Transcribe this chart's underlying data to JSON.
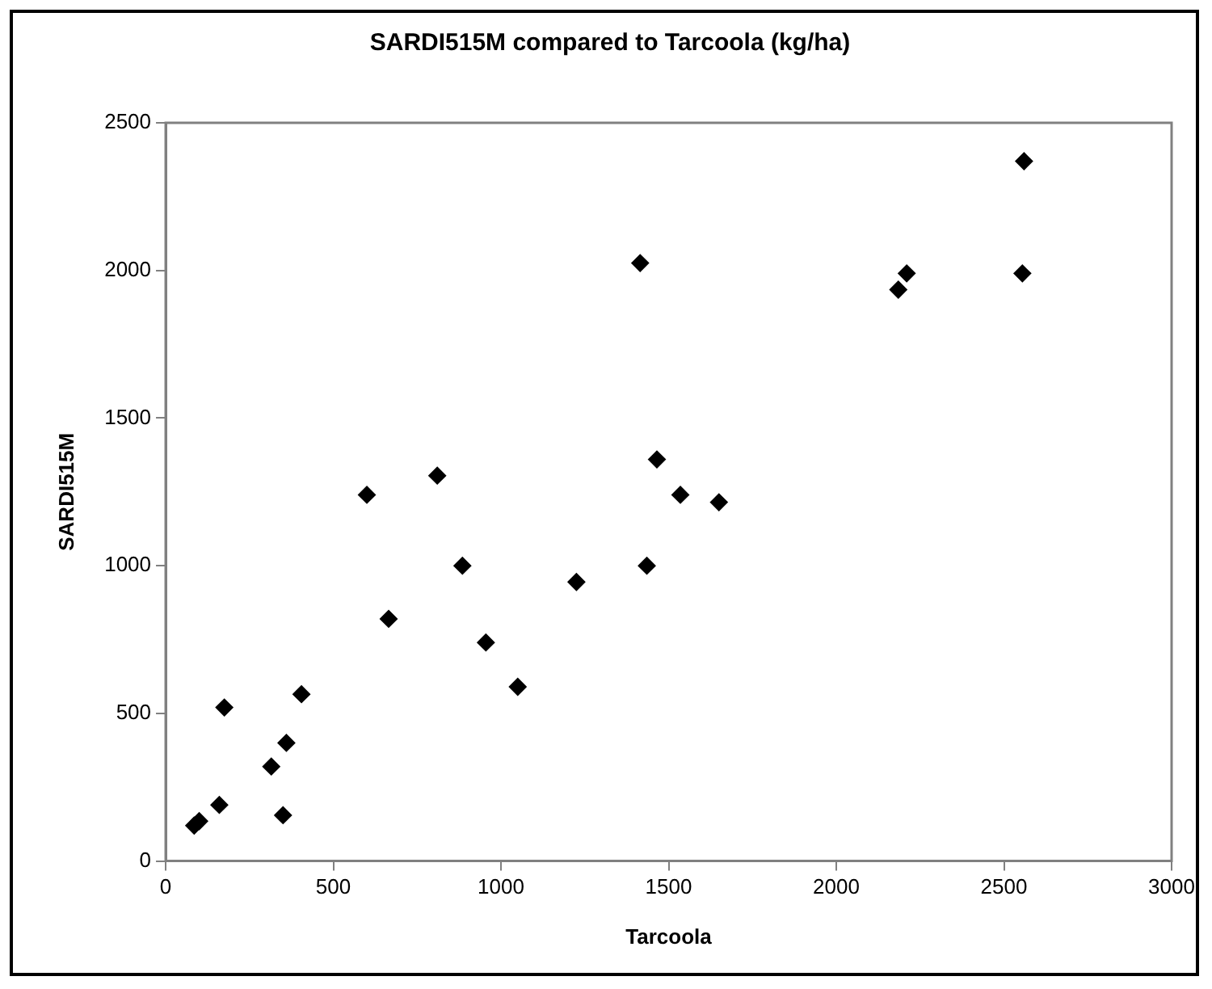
{
  "chart_data": {
    "type": "scatter",
    "title": "SARDI515M compared to Tarcoola (kg/ha)",
    "xlabel": "Tarcoola",
    "ylabel": "SARDI515M",
    "x": [
      85,
      100,
      160,
      175,
      315,
      350,
      360,
      405,
      600,
      665,
      810,
      885,
      955,
      1050,
      1225,
      1415,
      1435,
      1465,
      1535,
      1650,
      2185,
      2210,
      2555,
      2560
    ],
    "series": [
      {
        "color": "#000000",
        "values": [
          120,
          135,
          190,
          520,
          320,
          155,
          400,
          565,
          1240,
          820,
          1305,
          1000,
          740,
          590,
          945,
          2025,
          1000,
          1360,
          1240,
          1215,
          1935,
          1990,
          1990,
          2370
        ]
      }
    ],
    "xlim": [
      0,
      3000
    ],
    "xticks": [
      0,
      500,
      1000,
      1500,
      2000,
      2500,
      3000
    ],
    "ylim": [
      0,
      2500
    ],
    "yticks": [
      0,
      500,
      1000,
      1500,
      2000,
      2500
    ],
    "grid": false,
    "legend": false,
    "marker": "diamond"
  }
}
